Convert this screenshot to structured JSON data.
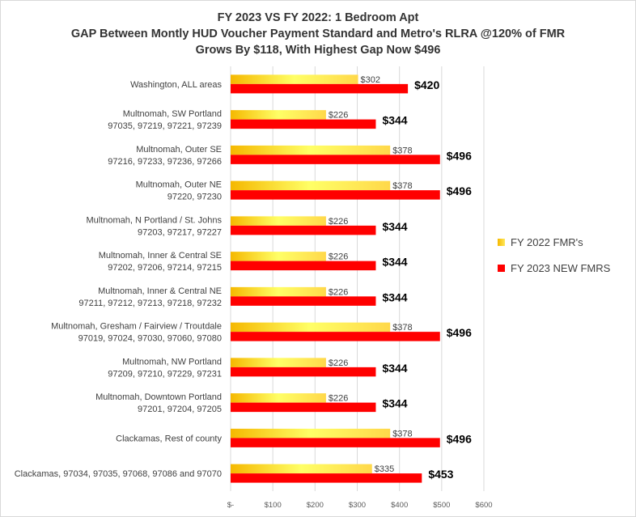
{
  "chart_data": {
    "type": "bar",
    "orientation": "horizontal",
    "title_lines": [
      "FY 2023 VS FY 2022: 1 Bedroom Apt",
      "GAP Between Montly HUD Voucher Payment Standard and Metro's RLRA @120% of FMR",
      "Grows By $118, With Highest Gap Now $496"
    ],
    "categories": [
      [
        "Washington, ALL areas"
      ],
      [
        "Multnomah, SW Portland",
        "97035, 97219, 97221, 97239"
      ],
      [
        "Multnomah, Outer SE",
        "97216, 97233, 97236, 97266"
      ],
      [
        "Multnomah, Outer NE",
        "97220, 97230"
      ],
      [
        "Multnomah, N Portland / St. Johns",
        "97203, 97217, 97227"
      ],
      [
        "Multnomah, Inner & Central SE",
        "97202, 97206, 97214, 97215"
      ],
      [
        "Multnomah, Inner & Central NE",
        "97211, 97212, 97213, 97218, 97232"
      ],
      [
        "Multnomah, Gresham / Fairview / Troutdale",
        "97019, 97024, 97030, 97060, 97080"
      ],
      [
        "Multnomah, NW Portland",
        "97209, 97210, 97229, 97231"
      ],
      [
        "Multnomah, Downtown Portland",
        "97201, 97204, 97205"
      ],
      [
        "Clackamas, Rest of county"
      ],
      [
        "Clackamas, 97034, 97035, 97068, 97086 and 97070"
      ]
    ],
    "series": [
      {
        "name": "FY 2022 FMR's",
        "values": [
          302,
          226,
          378,
          378,
          226,
          226,
          226,
          378,
          226,
          226,
          378,
          335
        ],
        "labels": [
          "$302",
          "$226",
          "$378",
          "$378",
          "$226",
          "$226",
          "$226",
          "$378",
          "$226",
          "$226",
          "$378",
          "$335"
        ],
        "color_start": "#f5b800",
        "color_mid": "#ffff66",
        "color_end": "#ffd84a"
      },
      {
        "name": "FY 2023 NEW FMRS",
        "values": [
          420,
          344,
          496,
          496,
          344,
          344,
          344,
          496,
          344,
          344,
          496,
          453
        ],
        "labels": [
          "$420",
          "$344",
          "$496",
          "$496",
          "$344",
          "$344",
          "$344",
          "$496",
          "$344",
          "$344",
          "$496",
          "$453"
        ],
        "color": "#ff0000"
      }
    ],
    "xlim": [
      0,
      600
    ],
    "xticks": [
      0,
      100,
      200,
      300,
      400,
      500,
      600
    ],
    "xtick_labels": [
      "$-",
      "$100",
      "$200",
      "$300",
      "$400",
      "$500",
      "$600"
    ],
    "grid": true,
    "legend_position": "right"
  }
}
